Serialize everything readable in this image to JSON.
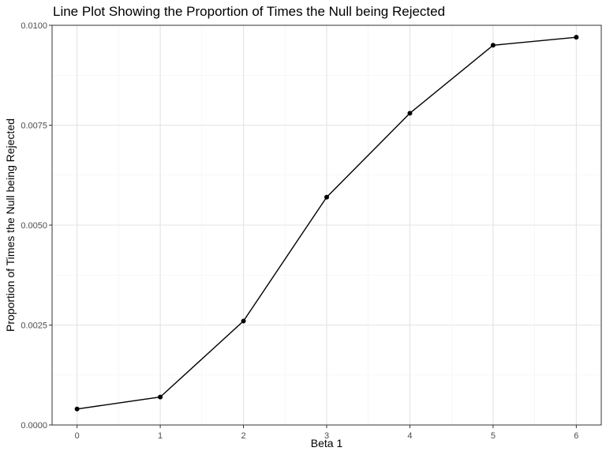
{
  "chart_data": {
    "type": "line",
    "title": "Line Plot Showing the Proportion of Times the Null being Rejected",
    "xlabel": "Beta 1",
    "ylabel": "Proportion of Times the Null being Rejected",
    "x": [
      0,
      1,
      2,
      3,
      4,
      5,
      6
    ],
    "series": [
      {
        "values": [
          0.0004,
          0.0007,
          0.0026,
          0.0057,
          0.0078,
          0.0095,
          0.0097
        ]
      }
    ],
    "xlim": [
      -0.3,
      6.3
    ],
    "ylim": [
      0,
      0.01
    ],
    "x_ticks": [
      "0",
      "1",
      "2",
      "3",
      "4",
      "5",
      "6"
    ],
    "y_ticks": [
      "0.0000",
      "0.0025",
      "0.0050",
      "0.0075",
      "0.0100"
    ],
    "grid": true,
    "line_color": "#000000",
    "point_color": "#000000"
  }
}
